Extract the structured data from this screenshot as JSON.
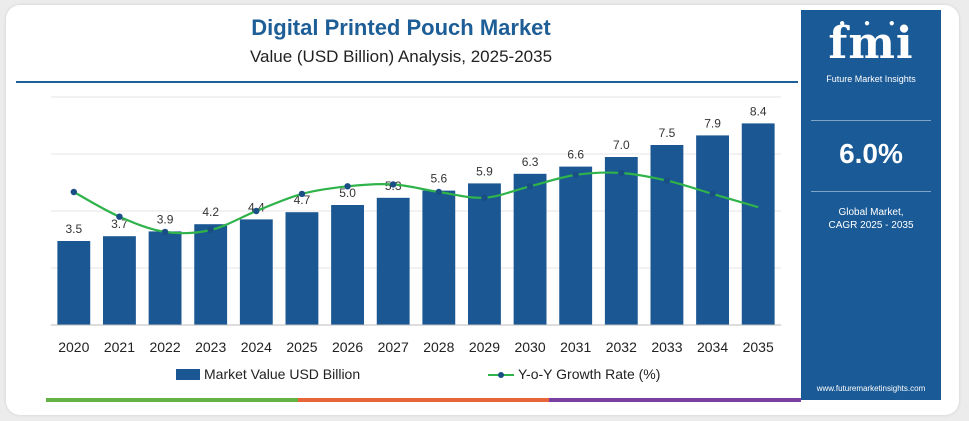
{
  "header": {
    "title": "Digital Printed Pouch Market",
    "subtitle": "Value (USD Billion) Analysis, 2025-2035"
  },
  "chart_data": {
    "type": "bar",
    "categories": [
      "2020",
      "2021",
      "2022",
      "2023",
      "2024",
      "2025",
      "2026",
      "2027",
      "2028",
      "2029",
      "2030",
      "2031",
      "2032",
      "2033",
      "2034",
      "2035"
    ],
    "series": [
      {
        "name": "Market Value USD Billion",
        "type": "bar",
        "values": [
          3.5,
          3.7,
          3.9,
          4.2,
          4.4,
          4.7,
          5.0,
          5.3,
          5.6,
          5.9,
          6.3,
          6.6,
          7.0,
          7.5,
          7.9,
          8.4
        ],
        "labels": [
          "3.5",
          "3.7",
          "3.9",
          "4.2",
          "4.4",
          "4.7",
          "5.0",
          "5.3",
          "5.6",
          "5.9",
          "6.3",
          "6.6",
          "7.0",
          "7.5",
          "7.9",
          "8.4"
        ]
      },
      {
        "name": "Y-o-Y Growth Rate (%)",
        "type": "line",
        "values": [
          7.0,
          5.7,
          4.9,
          5.0,
          6.0,
          6.9,
          7.3,
          7.4,
          7.0,
          6.7,
          7.3,
          7.9,
          8.0,
          7.6,
          6.9,
          6.2
        ]
      }
    ],
    "ylim": [
      0,
      9.5
    ],
    "line_ylim": [
      0,
      12
    ],
    "grid": true,
    "legend_position": "bottom",
    "colors": {
      "bar": "#1a5793",
      "line": "#2fb34a",
      "marker": "#1a4f86"
    }
  },
  "legend": {
    "bar_label": "Market Value USD Billion",
    "line_label": "Y-o-Y Growth Rate (%)"
  },
  "side_panel": {
    "logo": "fmi",
    "brand": "Future Market Insights",
    "cagr_value": "6.0%",
    "cagr_label_1": "Global Market,",
    "cagr_label_2": "CAGR 2025 - 2035",
    "url": "www.futuremarketinsights.com",
    "color": "#1a5a96"
  },
  "strip_colors": [
    "#63b245",
    "#e8643a",
    "#7a3fa0"
  ]
}
